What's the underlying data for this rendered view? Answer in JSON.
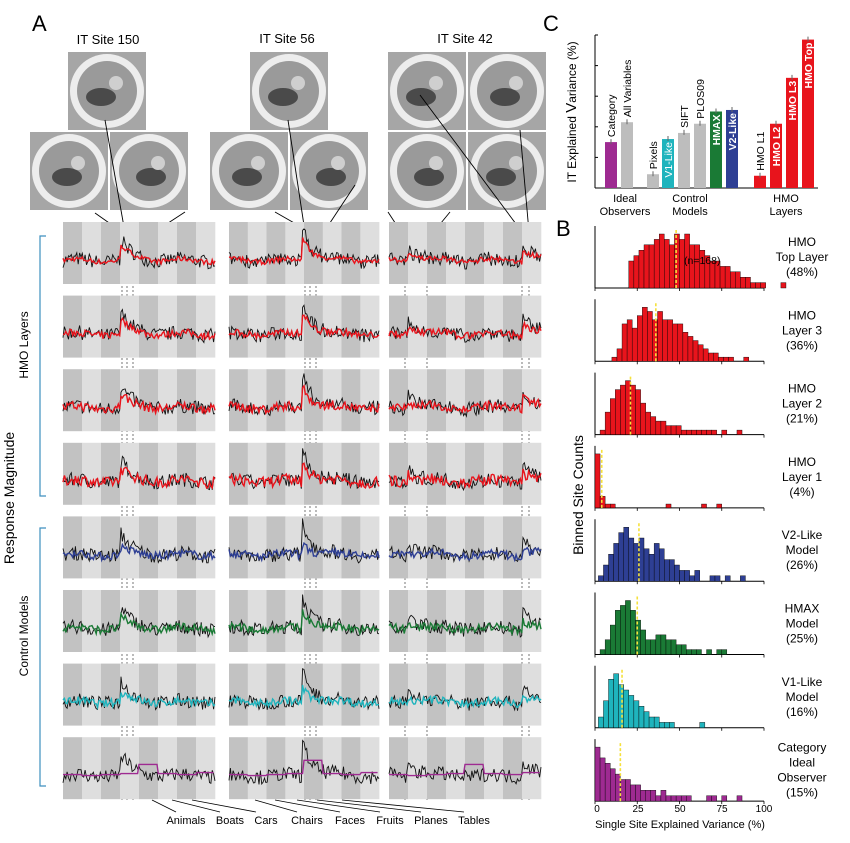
{
  "panels": {
    "a": "A",
    "b": "B",
    "c": "C"
  },
  "panel_a": {
    "site_titles": [
      "IT Site 150",
      "IT Site 56",
      "IT Site 42"
    ],
    "y_label": "Response Magnitude",
    "group_labels": [
      "HMO Layers",
      "Control Models"
    ],
    "row_colors": [
      "#e8141c",
      "#e8141c",
      "#e8141c",
      "#e8141c",
      "#2e3f94",
      "#1a7a35",
      "#1fb4bd",
      "#9e2a91"
    ],
    "categories": [
      "Animals",
      "Boats",
      "Cars",
      "Chairs",
      "Faces",
      "Fruits",
      "Planes",
      "Tables"
    ]
  },
  "panel_c": {
    "y_label_parts": [
      "IT Explained ",
      "V",
      "ariance (%)"
    ],
    "groups": [
      "Ideal Observers",
      "Control Models",
      "HMO Layers"
    ],
    "group_lines": [
      [
        "Ideal",
        "Observers"
      ],
      [
        "Control",
        "Models"
      ],
      [
        "HMO",
        "Layers"
      ]
    ]
  },
  "panel_b": {
    "y_label": "Binned Site Counts",
    "n_label": "(n=168)",
    "x_label": "Single Site Explained Variance (%)",
    "x_ticks": [
      "0",
      "25",
      "50",
      "75",
      "100"
    ]
  },
  "chart_data": [
    {
      "type": "bar",
      "categories": [
        "Category",
        "All Variables",
        "Pixels",
        "V1-Like",
        "SIFT",
        "PLOS09",
        "HMAX",
        "V2-Like",
        "HMO L1",
        "HMO L2",
        "HMO L3",
        "HMO Top"
      ],
      "values": [
        15,
        21.5,
        4.5,
        16,
        18,
        21,
        25,
        25.5,
        4,
        21,
        36,
        48.5
      ],
      "group_of": [
        0,
        0,
        1,
        1,
        1,
        1,
        1,
        1,
        2,
        2,
        2,
        2
      ],
      "colors": [
        "#9e2a91",
        "#bdbdbd",
        "#bdbdbd",
        "#1fb4bd",
        "#bdbdbd",
        "#bdbdbd",
        "#1a7a35",
        "#2e3f94",
        "#e8141c",
        "#e8141c",
        "#e8141c",
        "#e8141c"
      ],
      "label_inside": [
        false,
        false,
        false,
        true,
        false,
        false,
        true,
        true,
        false,
        true,
        true,
        true
      ],
      "ylabel": "IT Explained Variance (%)",
      "ylim": [
        0,
        50
      ],
      "yticks": [
        0,
        10,
        20,
        30,
        40,
        50
      ]
    },
    {
      "type": "bar",
      "xlabel": "Single Site Explained Variance (%)",
      "xlim": [
        0,
        100
      ],
      "histograms": [
        {
          "name": "HMO\nTop Layer\n(48%)",
          "color": "#e8141c",
          "median": 48,
          "bins_start": 20,
          "counts": [
            5,
            6,
            7,
            8,
            8,
            9,
            10,
            9,
            8,
            10,
            9,
            10,
            8,
            8,
            7,
            6,
            5,
            5,
            4,
            4,
            3,
            3,
            2,
            2,
            1,
            1,
            1,
            0,
            0,
            0,
            1
          ]
        },
        {
          "name": "HMO\nLayer 3\n(36%)",
          "color": "#e8141c",
          "median": 36,
          "bins_start": 10,
          "counts": [
            1,
            3,
            9,
            10,
            8,
            11,
            13,
            12,
            10,
            12,
            10,
            10,
            9,
            9,
            7,
            6,
            5,
            4,
            3,
            2,
            2,
            1,
            1,
            1,
            0,
            0,
            1
          ]
        },
        {
          "name": "HMO\nLayer 2\n(21%)",
          "color": "#e8141c",
          "median": 21,
          "bins_start": 3,
          "counts": [
            1,
            5,
            8,
            10,
            11,
            12,
            11,
            10,
            7,
            5,
            4,
            3,
            3,
            2,
            2,
            2,
            1,
            1,
            1,
            1,
            1,
            1,
            1,
            0,
            1,
            0,
            0,
            1
          ]
        },
        {
          "name": "HMO\nLayer 1\n(4%)",
          "color": "#e8141c",
          "median": 4,
          "bins_start": 0,
          "counts": [
            14,
            3,
            1,
            1,
            0,
            0,
            0,
            0,
            0,
            0,
            0,
            0,
            0,
            0,
            1,
            0,
            0,
            0,
            0,
            0,
            0,
            1,
            0,
            0,
            1
          ]
        },
        {
          "name": "V2-Like\nModel\n(26%)",
          "color": "#2e3f94",
          "median": 26,
          "bins_start": 2,
          "counts": [
            1,
            3,
            5,
            7,
            9,
            10,
            8,
            7,
            8,
            6,
            5,
            7,
            6,
            4,
            4,
            3,
            2,
            2,
            1,
            2,
            0,
            0,
            1,
            1,
            0,
            1,
            0,
            0,
            1
          ]
        },
        {
          "name": "HMAX\nModel\n(25%)",
          "color": "#1a7a35",
          "median": 25,
          "bins_start": 3,
          "counts": [
            1,
            3,
            6,
            9,
            10,
            11,
            9,
            7,
            5,
            3,
            3,
            4,
            4,
            3,
            3,
            2,
            2,
            1,
            1,
            1,
            0,
            1,
            0,
            1,
            1
          ]
        },
        {
          "name": "V1-Like\nModel\n(16%)",
          "color": "#1fb4bd",
          "median": 16,
          "bins_start": 2,
          "counts": [
            2,
            5,
            9,
            10,
            8,
            7,
            6,
            5,
            4,
            3,
            2,
            2,
            1,
            1,
            1,
            0,
            0,
            0,
            0,
            0,
            1
          ]
        },
        {
          "name": "Category\nIdeal\nObserver\n(15%)",
          "color": "#9e2a91",
          "median": 15,
          "bins_start": 0,
          "counts": [
            10,
            8,
            7,
            6,
            5,
            4,
            4,
            3,
            3,
            2,
            2,
            2,
            1,
            2,
            1,
            1,
            1,
            1,
            1,
            0,
            0,
            0,
            1,
            1,
            0,
            1,
            0,
            0,
            1
          ]
        }
      ]
    }
  ]
}
